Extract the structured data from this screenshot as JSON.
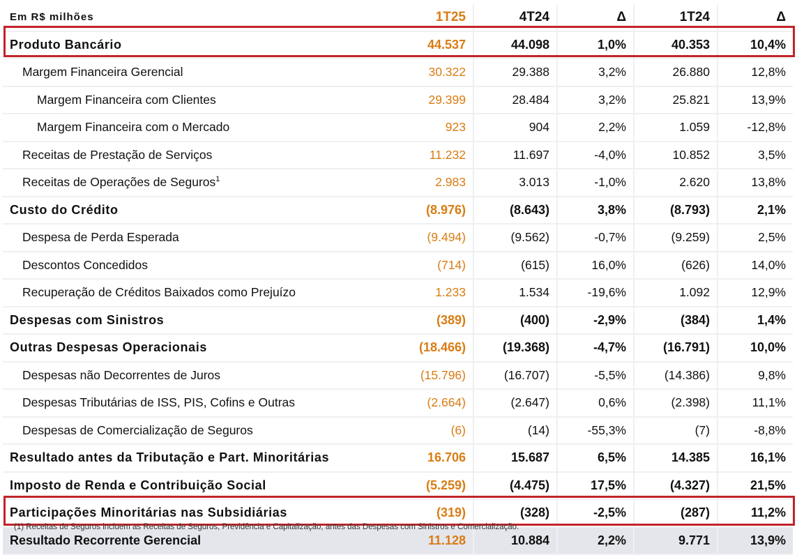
{
  "header": {
    "unit_label": "Em R$ milhões",
    "col_1t25": "1T25",
    "col_4t24": "4T24",
    "col_delta1": "Δ",
    "col_1t24": "1T24",
    "col_delta2": "Δ"
  },
  "rows": [
    {
      "label": "Produto Bancário",
      "v1t25": "44.537",
      "v4t24": "44.098",
      "d1": "1,0%",
      "v1t24": "40.353",
      "d2": "10,4%"
    },
    {
      "label": "Margem Financeira Gerencial",
      "v1t25": "30.322",
      "v4t24": "29.388",
      "d1": "3,2%",
      "v1t24": "26.880",
      "d2": "12,8%"
    },
    {
      "label": "Margem Financeira com Clientes",
      "v1t25": "29.399",
      "v4t24": "28.484",
      "d1": "3,2%",
      "v1t24": "25.821",
      "d2": "13,9%"
    },
    {
      "label": "Margem Financeira com o Mercado",
      "v1t25": "923",
      "v4t24": "904",
      "d1": "2,2%",
      "v1t24": "1.059",
      "d2": "-12,8%"
    },
    {
      "label": "Receitas de Prestação de Serviços",
      "v1t25": "11.232",
      "v4t24": "11.697",
      "d1": "-4,0%",
      "v1t24": "10.852",
      "d2": "3,5%"
    },
    {
      "label": "Receitas de Operações de Seguros",
      "sup": "1",
      "v1t25": "2.983",
      "v4t24": "3.013",
      "d1": "-1,0%",
      "v1t24": "2.620",
      "d2": "13,8%"
    },
    {
      "label": "Custo do Crédito",
      "v1t25": "(8.976)",
      "v4t24": "(8.643)",
      "d1": "3,8%",
      "v1t24": "(8.793)",
      "d2": "2,1%"
    },
    {
      "label": "Despesa de Perda Esperada",
      "v1t25": "(9.494)",
      "v4t24": "(9.562)",
      "d1": "-0,7%",
      "v1t24": "(9.259)",
      "d2": "2,5%"
    },
    {
      "label": "Descontos Concedidos",
      "v1t25": "(714)",
      "v4t24": "(615)",
      "d1": "16,0%",
      "v1t24": "(626)",
      "d2": "14,0%"
    },
    {
      "label": "Recuperação de Créditos Baixados como Prejuízo",
      "v1t25": "1.233",
      "v4t24": "1.534",
      "d1": "-19,6%",
      "v1t24": "1.092",
      "d2": "12,9%"
    },
    {
      "label": "Despesas com Sinistros",
      "v1t25": "(389)",
      "v4t24": "(400)",
      "d1": "-2,9%",
      "v1t24": "(384)",
      "d2": "1,4%"
    },
    {
      "label": "Outras Despesas Operacionais",
      "v1t25": "(18.466)",
      "v4t24": "(19.368)",
      "d1": "-4,7%",
      "v1t24": "(16.791)",
      "d2": "10,0%"
    },
    {
      "label": "Despesas não Decorrentes de Juros",
      "v1t25": "(15.796)",
      "v4t24": "(16.707)",
      "d1": "-5,5%",
      "v1t24": "(14.386)",
      "d2": "9,8%"
    },
    {
      "label": "Despesas Tributárias de ISS, PIS, Cofins e Outras",
      "v1t25": "(2.664)",
      "v4t24": "(2.647)",
      "d1": "0,6%",
      "v1t24": "(2.398)",
      "d2": "11,1%"
    },
    {
      "label": "Despesas de Comercialização de Seguros",
      "v1t25": "(6)",
      "v4t24": "(14)",
      "d1": "-55,3%",
      "v1t24": "(7)",
      "d2": "-8,8%"
    },
    {
      "label": "Resultado antes da Tributação e Part. Minoritárias",
      "v1t25": "16.706",
      "v4t24": "15.687",
      "d1": "6,5%",
      "v1t24": "14.385",
      "d2": "16,1%"
    },
    {
      "label": "Imposto de Renda e Contribuição Social",
      "v1t25": "(5.259)",
      "v4t24": "(4.475)",
      "d1": "17,5%",
      "v1t24": "(4.327)",
      "d2": "21,5%"
    },
    {
      "label": "Participações Minoritárias nas Subsidiárias",
      "v1t25": "(319)",
      "v4t24": "(328)",
      "d1": "-2,5%",
      "v1t24": "(287)",
      "d2": "11,2%"
    },
    {
      "label": "Resultado Recorrente Gerencial",
      "v1t25": "11.128",
      "v4t24": "10.884",
      "d1": "2,2%",
      "v1t24": "9.771",
      "d2": "13,9%"
    }
  ],
  "footnote": {
    "marker": "(1)",
    "text": " Receitas de Seguros incluem as Receitas de Seguros, Previdência e Capitalização, antes das Despesas com Sinistros e Comercialização."
  },
  "colors": {
    "highlight_border": "#c2232a",
    "current_quarter": "#d97c13",
    "total_row_bg": "#e4e6ec"
  }
}
